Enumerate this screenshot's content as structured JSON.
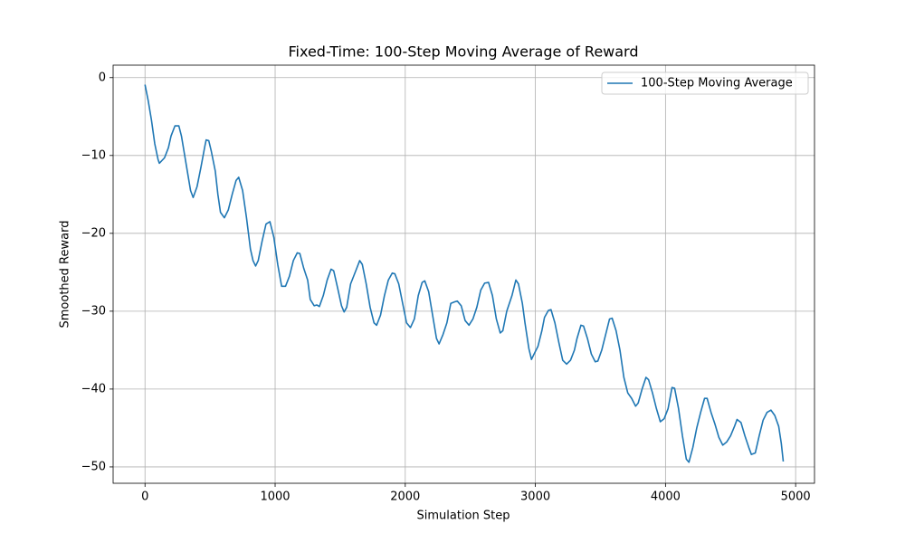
{
  "chart_data": {
    "type": "line",
    "title": "Fixed-Time: 100-Step Moving Average of Reward",
    "x_label": "Simulation Step",
    "y_label": "Smoothed Reward",
    "x": [
      0,
      25,
      50,
      75,
      100,
      110,
      150,
      180,
      200,
      230,
      260,
      280,
      300,
      330,
      350,
      370,
      400,
      430,
      460,
      470,
      490,
      510,
      540,
      560,
      580,
      610,
      640,
      670,
      700,
      720,
      750,
      780,
      810,
      830,
      850,
      870,
      900,
      930,
      960,
      990,
      1020,
      1050,
      1080,
      1110,
      1140,
      1170,
      1190,
      1220,
      1250,
      1270,
      1300,
      1320,
      1340,
      1370,
      1400,
      1430,
      1450,
      1480,
      1510,
      1530,
      1550,
      1580,
      1620,
      1650,
      1670,
      1700,
      1730,
      1760,
      1780,
      1810,
      1840,
      1870,
      1900,
      1920,
      1950,
      1980,
      2010,
      2040,
      2070,
      2100,
      2130,
      2150,
      2180,
      2210,
      2240,
      2260,
      2290,
      2320,
      2350,
      2380,
      2400,
      2430,
      2460,
      2490,
      2520,
      2550,
      2580,
      2610,
      2640,
      2670,
      2700,
      2730,
      2750,
      2780,
      2820,
      2850,
      2870,
      2900,
      2920,
      2950,
      2970,
      2990,
      3020,
      3050,
      3070,
      3100,
      3120,
      3150,
      3180,
      3210,
      3240,
      3270,
      3300,
      3320,
      3350,
      3370,
      3400,
      3430,
      3460,
      3480,
      3510,
      3540,
      3570,
      3590,
      3620,
      3650,
      3680,
      3710,
      3740,
      3770,
      3790,
      3820,
      3850,
      3870,
      3900,
      3930,
      3960,
      3990,
      4020,
      4050,
      4070,
      4100,
      4130,
      4160,
      4180,
      4210,
      4240,
      4270,
      4300,
      4320,
      4350,
      4380,
      4410,
      4440,
      4470,
      4500,
      4530,
      4550,
      4580,
      4610,
      4640,
      4660,
      4690,
      4720,
      4750,
      4780,
      4810,
      4840,
      4870,
      4890,
      4905
    ],
    "series": [
      {
        "name": "100-Step Moving Average",
        "color": "#1f77b4",
        "values": [
          -0.9,
          -3,
          -5.5,
          -8.5,
          -10.5,
          -11,
          -10.3,
          -9,
          -7.5,
          -6.2,
          -6.2,
          -7.5,
          -9.5,
          -12.5,
          -14.5,
          -15.4,
          -14,
          -11.5,
          -8.8,
          -8,
          -8.1,
          -9.5,
          -12,
          -15,
          -17.3,
          -18,
          -17,
          -15,
          -13.2,
          -12.8,
          -14.5,
          -18,
          -22,
          -23.5,
          -24.2,
          -23.5,
          -21,
          -18.8,
          -18.5,
          -20.5,
          -24,
          -26.8,
          -26.8,
          -25.5,
          -23.5,
          -22.5,
          -22.6,
          -24.5,
          -26,
          -28.5,
          -29.3,
          -29.2,
          -29.4,
          -28,
          -26,
          -24.6,
          -24.8,
          -27,
          -29.3,
          -30.1,
          -29.5,
          -26.5,
          -24.8,
          -23.5,
          -24,
          -26.5,
          -29.5,
          -31.5,
          -31.8,
          -30.5,
          -28,
          -26,
          -25.1,
          -25.2,
          -26.5,
          -29,
          -31.5,
          -32.1,
          -31,
          -28,
          -26.3,
          -26.1,
          -27.5,
          -30.5,
          -33.5,
          -34.2,
          -33,
          -31.5,
          -29,
          -28.8,
          -28.7,
          -29.3,
          -31.2,
          -31.8,
          -31,
          -29.5,
          -27.3,
          -26.4,
          -26.3,
          -28,
          -31,
          -32.8,
          -32.5,
          -30,
          -28,
          -26,
          -26.5,
          -29,
          -31.5,
          -34.8,
          -36.2,
          -35.5,
          -34.5,
          -32.5,
          -30.8,
          -29.9,
          -29.8,
          -31.5,
          -34,
          -36.3,
          -36.8,
          -36.3,
          -35,
          -33.5,
          -31.8,
          -31.9,
          -33.5,
          -35.5,
          -36.5,
          -36.4,
          -35,
          -33,
          -31,
          -30.9,
          -32.5,
          -35,
          -38.5,
          -40.5,
          -41.2,
          -42.2,
          -41.8,
          -40,
          -38.5,
          -38.8,
          -40.5,
          -42.5,
          -44.2,
          -43.8,
          -42.5,
          -39.8,
          -39.9,
          -42.5,
          -46,
          -49,
          -49.4,
          -47.5,
          -45,
          -43,
          -41.2,
          -41.2,
          -43,
          -44.5,
          -46.2,
          -47.2,
          -46.8,
          -46,
          -44.8,
          -43.9,
          -44.3,
          -46,
          -47.5,
          -48.4,
          -48.2,
          -46,
          -44,
          -43,
          -42.7,
          -43.4,
          -44.8,
          -47,
          -49.3
        ]
      }
    ],
    "xlim": [
      -245,
      5145
    ],
    "ylim": [
      -52.1,
      1.6
    ],
    "xticks": [
      0,
      1000,
      2000,
      3000,
      4000,
      5000
    ],
    "yticks": [
      0,
      {
        "value": -10,
        "label": "−10"
      },
      {
        "value": -20,
        "label": "−20"
      },
      {
        "value": -30,
        "label": "−30"
      },
      {
        "value": -40,
        "label": "−40"
      },
      {
        "value": -50,
        "label": "−50"
      }
    ],
    "grid": true,
    "legend_position": "upper right"
  }
}
